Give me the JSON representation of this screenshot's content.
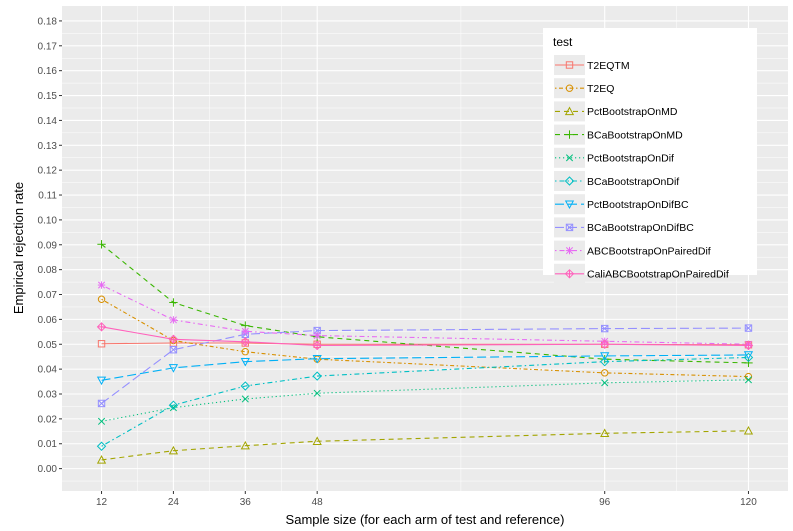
{
  "chart_data": {
    "type": "line",
    "xlabel": "Sample size (for each arm of test and reference)",
    "ylabel": "Empirical rejection rate",
    "x": [
      12,
      24,
      36,
      48,
      96,
      120
    ],
    "xlim": [
      5.4,
      126.6
    ],
    "ylim": [
      -0.009,
      0.186
    ],
    "x_ticks": [
      "12",
      "24",
      "36",
      "48",
      "96",
      "120"
    ],
    "y_ticks": [
      "0.00",
      "0.01",
      "0.02",
      "0.03",
      "0.04",
      "0.05",
      "0.06",
      "0.07",
      "0.08",
      "0.09",
      "0.10",
      "0.11",
      "0.12",
      "0.13",
      "0.14",
      "0.15",
      "0.16",
      "0.17",
      "0.18"
    ],
    "grid": true,
    "legend_title": "test",
    "legend_position": "top-right",
    "series": [
      {
        "name": "T2EQTM",
        "color": "#F8766D",
        "marker": "square",
        "dash": "solid",
        "values": [
          0.0502,
          0.0505,
          0.0505,
          0.05,
          0.05,
          0.0498
        ]
      },
      {
        "name": "T2EQ",
        "color": "#D89000",
        "marker": "circle",
        "dash": "dotted-dash",
        "values": [
          0.0681,
          0.0515,
          0.047,
          0.044,
          0.0385,
          0.037
        ]
      },
      {
        "name": "PctBootstrapOnMD",
        "color": "#A3A500",
        "marker": "triangle",
        "dash": "dashed",
        "values": [
          0.0035,
          0.0072,
          0.0092,
          0.011,
          0.0142,
          0.0152
        ]
      },
      {
        "name": "BCaBootstrapOnMD",
        "color": "#39B600",
        "marker": "plus",
        "dash": "dashed",
        "values": [
          0.0902,
          0.0668,
          0.0575,
          0.053,
          0.044,
          0.0425
        ]
      },
      {
        "name": "PctBootstrapOnDif",
        "color": "#00BF7D",
        "marker": "x",
        "dash": "dotted",
        "values": [
          0.019,
          0.0245,
          0.028,
          0.0303,
          0.0345,
          0.0357
        ]
      },
      {
        "name": "BCaBootstrapOnDif",
        "color": "#00BFC4",
        "marker": "diamond",
        "dash": "dot-dash",
        "values": [
          0.009,
          0.0255,
          0.0332,
          0.0372,
          0.043,
          0.0447
        ]
      },
      {
        "name": "PctBootstrapOnDifBC",
        "color": "#00B0F6",
        "marker": "triangle-down",
        "dash": "long-dash",
        "values": [
          0.0355,
          0.0405,
          0.043,
          0.0442,
          0.0453,
          0.0457
        ]
      },
      {
        "name": "BCaBootstrapOnDifBC",
        "color": "#9590FF",
        "marker": "boxed-x",
        "dash": "long-dash",
        "values": [
          0.0262,
          0.0478,
          0.054,
          0.0555,
          0.0563,
          0.0565
        ]
      },
      {
        "name": "ABCBootstrapOnPairedDif",
        "color": "#E76BF3",
        "marker": "asterisk",
        "dash": "dot-dash",
        "values": [
          0.0738,
          0.0598,
          0.0552,
          0.0535,
          0.0512,
          0.05
        ]
      },
      {
        "name": "CaliABCBootstrapOnPairedDif",
        "color": "#FF62BC",
        "marker": "diamond-plus",
        "dash": "solid",
        "values": [
          0.057,
          0.052,
          0.051,
          0.0495,
          0.05,
          0.0495
        ]
      }
    ]
  }
}
